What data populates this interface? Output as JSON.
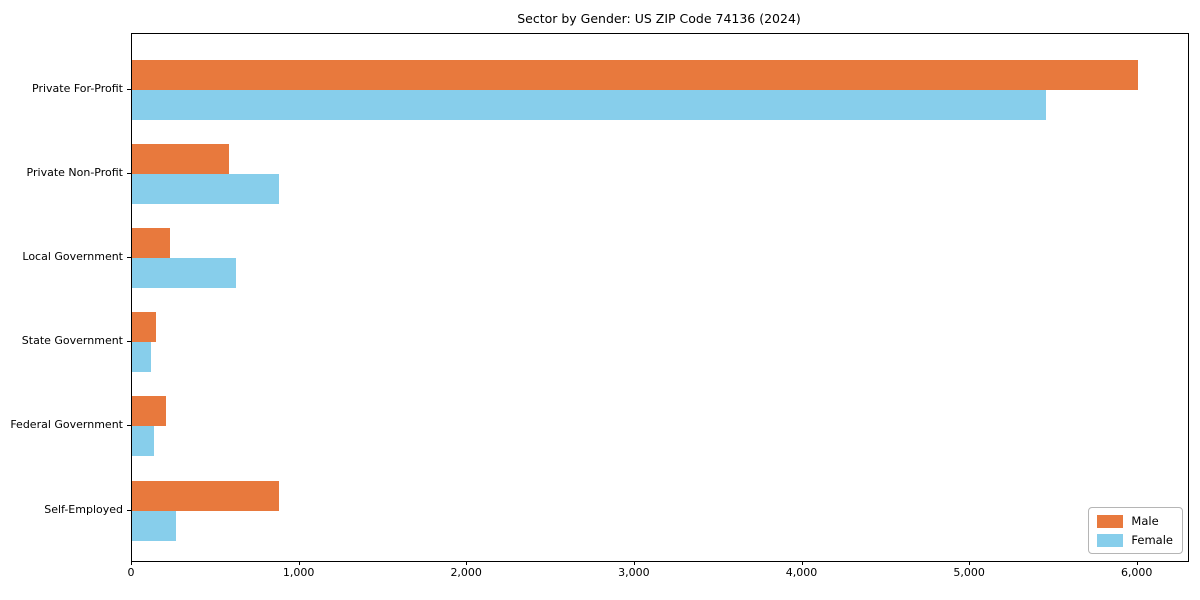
{
  "figure": {
    "background": "#ffffff"
  },
  "chart_data": {
    "type": "bar",
    "orientation": "horizontal",
    "title": "Sector by Gender: US ZIP Code 74136 (2024)",
    "categories": [
      "Private For-Profit",
      "Private Non-Profit",
      "Local Government",
      "State Government",
      "Federal Government",
      "Self-Employed"
    ],
    "series": [
      {
        "name": "Male",
        "color": "#e8793d",
        "values": [
          6000,
          580,
          225,
          140,
          200,
          875
        ]
      },
      {
        "name": "Female",
        "color": "#87ceeb",
        "values": [
          5450,
          875,
          620,
          115,
          130,
          260
        ]
      }
    ],
    "xlim": [
      0,
      6300
    ],
    "xticks": [
      0,
      1000,
      2000,
      3000,
      4000,
      5000,
      6000
    ],
    "xtick_labels": [
      "0",
      "1,000",
      "2,000",
      "3,000",
      "4,000",
      "5,000",
      "6,000"
    ],
    "xlabel": "",
    "ylabel": "",
    "grid": false,
    "legend_position": "lower-right"
  }
}
